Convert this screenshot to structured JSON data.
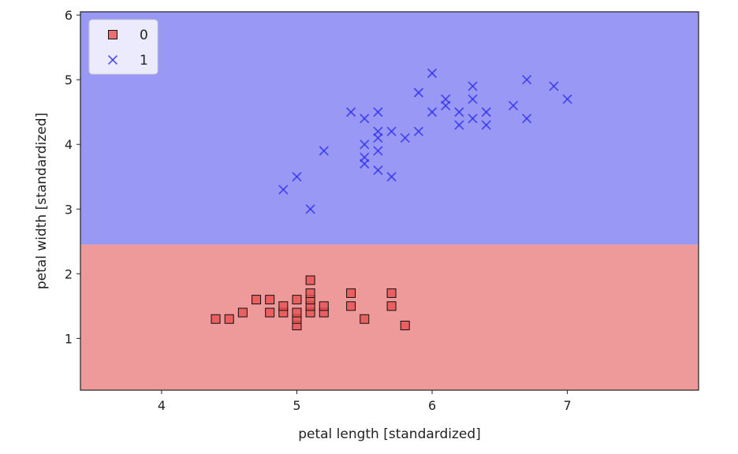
{
  "chart_data": {
    "type": "scatter",
    "xlabel": "petal length [standardized]",
    "ylabel": "petal width [standardized]",
    "xlim": [
      3.4,
      7.97
    ],
    "ylim": [
      0.2,
      6.05
    ],
    "xticks": [
      4,
      5,
      6,
      7
    ],
    "yticks": [
      1,
      2,
      3,
      4,
      5,
      6
    ],
    "grid": false,
    "legend_position": "top-left",
    "decision_regions": [
      {
        "class": "0",
        "y_from": 0.2,
        "y_to": 2.45,
        "color": "#ef9a9a"
      },
      {
        "class": "1",
        "y_from": 2.45,
        "y_to": 6.05,
        "color": "#9999f5"
      }
    ],
    "series": [
      {
        "name": "0",
        "marker": "square",
        "color": "#e85050",
        "points": [
          [
            4.4,
            1.3
          ],
          [
            4.5,
            1.3
          ],
          [
            4.6,
            1.4
          ],
          [
            4.7,
            1.6
          ],
          [
            4.8,
            1.4
          ],
          [
            4.8,
            1.6
          ],
          [
            4.9,
            1.4
          ],
          [
            4.9,
            1.5
          ],
          [
            5.0,
            1.2
          ],
          [
            5.0,
            1.3
          ],
          [
            5.0,
            1.4
          ],
          [
            5.0,
            1.6
          ],
          [
            5.1,
            1.4
          ],
          [
            5.1,
            1.5
          ],
          [
            5.1,
            1.6
          ],
          [
            5.1,
            1.7
          ],
          [
            5.1,
            1.9
          ],
          [
            5.2,
            1.4
          ],
          [
            5.2,
            1.5
          ],
          [
            5.4,
            1.5
          ],
          [
            5.4,
            1.7
          ],
          [
            5.5,
            1.3
          ],
          [
            5.7,
            1.5
          ],
          [
            5.7,
            1.7
          ],
          [
            5.8,
            1.2
          ]
        ]
      },
      {
        "name": "1",
        "marker": "x",
        "color": "#3333ee",
        "points": [
          [
            4.9,
            3.3
          ],
          [
            5.0,
            3.5
          ],
          [
            5.1,
            3.0
          ],
          [
            5.2,
            3.9
          ],
          [
            5.4,
            4.5
          ],
          [
            5.5,
            3.7
          ],
          [
            5.5,
            3.8
          ],
          [
            5.5,
            4.0
          ],
          [
            5.5,
            4.4
          ],
          [
            5.6,
            3.6
          ],
          [
            5.6,
            3.9
          ],
          [
            5.6,
            4.1
          ],
          [
            5.6,
            4.2
          ],
          [
            5.6,
            4.5
          ],
          [
            5.7,
            3.5
          ],
          [
            5.7,
            4.2
          ],
          [
            5.8,
            4.1
          ],
          [
            5.9,
            4.2
          ],
          [
            5.9,
            4.8
          ],
          [
            6.0,
            4.5
          ],
          [
            6.0,
            5.1
          ],
          [
            6.1,
            4.6
          ],
          [
            6.1,
            4.7
          ],
          [
            6.2,
            4.3
          ],
          [
            6.2,
            4.5
          ],
          [
            6.3,
            4.4
          ],
          [
            6.3,
            4.7
          ],
          [
            6.3,
            4.9
          ],
          [
            6.4,
            4.3
          ],
          [
            6.4,
            4.5
          ],
          [
            6.6,
            4.6
          ],
          [
            6.7,
            4.4
          ],
          [
            6.7,
            5.0
          ],
          [
            6.9,
            4.9
          ],
          [
            7.0,
            4.7
          ]
        ]
      }
    ]
  }
}
